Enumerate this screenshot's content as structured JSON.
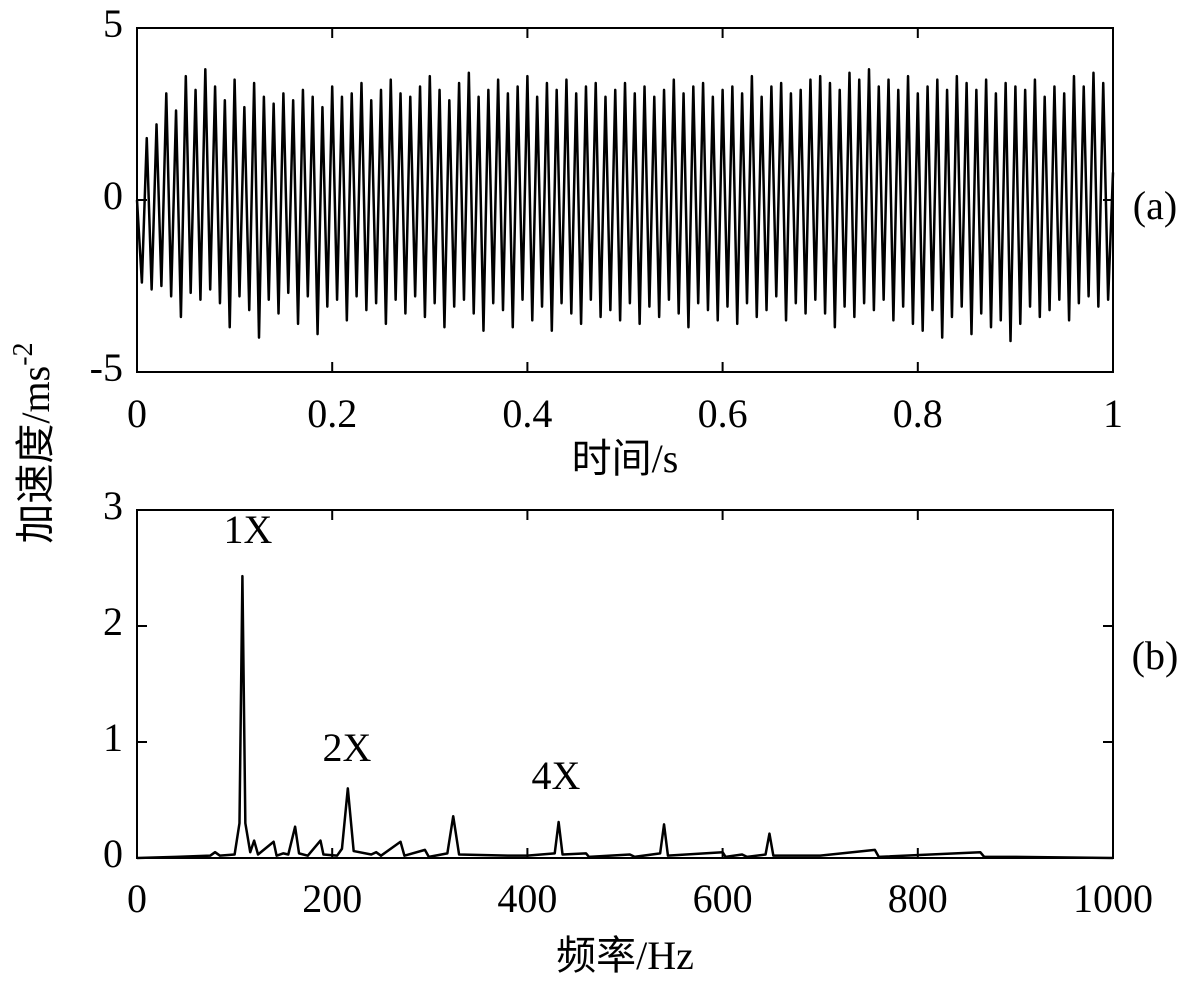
{
  "chart_data": [
    {
      "type": "line",
      "panel_label": "(a)",
      "xlabel": "时间/s",
      "ylabel": "加速度/ms",
      "ylabel_superscript": "-2",
      "xlim": [
        0,
        1
      ],
      "xticks": [
        0,
        0.2,
        0.4,
        0.6,
        0.8,
        1
      ],
      "ylim": [
        -5,
        5
      ],
      "yticks": [
        -5,
        0,
        5
      ],
      "color": "#000000",
      "x": [
        0,
        0.005,
        0.01,
        0.015,
        0.02,
        0.025,
        0.03,
        0.035,
        0.04,
        0.045,
        0.05,
        0.055,
        0.06,
        0.065,
        0.07,
        0.075,
        0.08,
        0.085,
        0.09,
        0.095,
        0.1,
        0.105,
        0.11,
        0.115,
        0.12,
        0.125,
        0.13,
        0.135,
        0.14,
        0.145,
        0.15,
        0.155,
        0.16,
        0.165,
        0.17,
        0.175,
        0.18,
        0.185,
        0.19,
        0.195,
        0.2,
        0.205,
        0.21,
        0.215,
        0.22,
        0.225,
        0.23,
        0.235,
        0.24,
        0.245,
        0.25,
        0.255,
        0.26,
        0.265,
        0.27,
        0.275,
        0.28,
        0.285,
        0.29,
        0.295,
        0.3,
        0.305,
        0.31,
        0.315,
        0.32,
        0.325,
        0.33,
        0.335,
        0.34,
        0.345,
        0.35,
        0.355,
        0.36,
        0.365,
        0.37,
        0.375,
        0.38,
        0.385,
        0.39,
        0.395,
        0.4,
        0.405,
        0.41,
        0.415,
        0.42,
        0.425,
        0.43,
        0.435,
        0.44,
        0.445,
        0.45,
        0.455,
        0.46,
        0.465,
        0.47,
        0.475,
        0.48,
        0.485,
        0.49,
        0.495,
        0.5,
        0.505,
        0.51,
        0.515,
        0.52,
        0.525,
        0.53,
        0.535,
        0.54,
        0.545,
        0.55,
        0.555,
        0.56,
        0.565,
        0.57,
        0.575,
        0.58,
        0.585,
        0.59,
        0.595,
        0.6,
        0.605,
        0.61,
        0.615,
        0.62,
        0.625,
        0.63,
        0.635,
        0.64,
        0.645,
        0.65,
        0.655,
        0.66,
        0.665,
        0.67,
        0.675,
        0.68,
        0.685,
        0.69,
        0.695,
        0.7,
        0.705,
        0.71,
        0.715,
        0.72,
        0.725,
        0.73,
        0.735,
        0.74,
        0.745,
        0.75,
        0.755,
        0.76,
        0.765,
        0.77,
        0.775,
        0.78,
        0.785,
        0.79,
        0.795,
        0.8,
        0.805,
        0.81,
        0.815,
        0.82,
        0.825,
        0.83,
        0.835,
        0.84,
        0.845,
        0.85,
        0.855,
        0.86,
        0.865,
        0.87,
        0.875,
        0.88,
        0.885,
        0.89,
        0.895,
        0.9,
        0.905,
        0.91,
        0.915,
        0.92,
        0.925,
        0.93,
        0.935,
        0.94,
        0.945,
        0.95,
        0.955,
        0.96,
        0.965,
        0.97,
        0.975,
        0.98,
        0.985,
        0.99,
        0.995,
        1
      ],
      "values": [
        0,
        -2.4,
        1.8,
        -2.6,
        2.2,
        -2.5,
        3.1,
        -2.8,
        2.6,
        -3.4,
        3.6,
        -2.7,
        3.2,
        -2.9,
        3.8,
        -2.6,
        3.3,
        -3.0,
        2.9,
        -3.7,
        3.5,
        -2.8,
        2.7,
        -3.2,
        3.4,
        -4.0,
        3.0,
        -2.9,
        2.8,
        -3.3,
        3.1,
        -2.7,
        2.9,
        -3.6,
        3.2,
        -2.8,
        3.0,
        -3.9,
        2.7,
        -3.1,
        3.3,
        -2.9,
        3.0,
        -3.5,
        3.1,
        -2.8,
        3.4,
        -3.2,
        2.9,
        -3.0,
        3.2,
        -3.6,
        3.5,
        -2.9,
        3.1,
        -3.3,
        3.0,
        -2.8,
        3.3,
        -3.4,
        3.6,
        -3.0,
        3.2,
        -3.7,
        2.9,
        -3.1,
        3.4,
        -2.9,
        3.7,
        -3.3,
        3.0,
        -3.8,
        3.2,
        -3.0,
        3.5,
        -3.2,
        3.1,
        -3.7,
        3.3,
        -2.9,
        3.6,
        -3.5,
        3.0,
        -3.1,
        3.4,
        -3.8,
        3.2,
        -3.0,
        3.5,
        -3.3,
        3.1,
        -3.6,
        3.3,
        -2.9,
        3.4,
        -3.4,
        3.0,
        -3.2,
        3.2,
        -3.5,
        3.4,
        -3.0,
        3.1,
        -3.6,
        3.3,
        -3.1,
        3.0,
        -3.4,
        3.2,
        -2.9,
        3.5,
        -3.3,
        3.1,
        -3.7,
        3.3,
        -3.0,
        3.4,
        -3.2,
        3.0,
        -3.5,
        3.2,
        -3.1,
        3.3,
        -3.6,
        3.1,
        -3.0,
        3.6,
        -3.4,
        3.0,
        -3.2,
        3.3,
        -2.8,
        3.4,
        -3.5,
        3.1,
        -3.0,
        3.2,
        -3.3,
        3.5,
        -2.9,
        3.6,
        -3.3,
        3.4,
        -3.7,
        3.2,
        -3.1,
        3.7,
        -3.4,
        3.5,
        -3.0,
        3.8,
        -3.2,
        3.3,
        -2.9,
        3.5,
        -3.5,
        3.2,
        -3.1,
        3.6,
        -3.6,
        3.1,
        -3.8,
        3.3,
        -3.2,
        3.5,
        -4.0,
        3.2,
        -3.4,
        3.6,
        -3.1,
        3.4,
        -3.9,
        3.2,
        -3.3,
        3.5,
        -3.7,
        3.1,
        -3.5,
        3.4,
        -4.1,
        3.3,
        -3.6,
        3.2,
        -3.1,
        3.5,
        -3.4,
        3.0,
        -3.2,
        3.3,
        -2.9,
        3.1,
        -3.5,
        3.6,
        -3.0,
        3.3,
        -2.8,
        3.7,
        -3.1,
        3.4,
        -2.9,
        0.8
      ]
    },
    {
      "type": "line",
      "panel_label": "(b)",
      "xlabel": "频率/Hz",
      "annotations": [
        "1X",
        "2X",
        "4X"
      ],
      "xlim": [
        0,
        1000
      ],
      "xticks": [
        0,
        200,
        400,
        600,
        800,
        1000
      ],
      "ylim": [
        0,
        3
      ],
      "yticks": [
        0,
        1,
        2,
        3
      ],
      "color": "#000000",
      "x": [
        0,
        40,
        75,
        80,
        85,
        100,
        105,
        108,
        111,
        116,
        120,
        124,
        140,
        143,
        150,
        155,
        162,
        166,
        175,
        188,
        191,
        205,
        210,
        216,
        222,
        240,
        245,
        250,
        270,
        274,
        295,
        299,
        318,
        324,
        330,
        380,
        400,
        428,
        432,
        436,
        460,
        463,
        505,
        510,
        536,
        540,
        544,
        600,
        603,
        620,
        625,
        644,
        648,
        652,
        700,
        756,
        760,
        864,
        868,
        900,
        1000
      ],
      "values": [
        0,
        0.01,
        0.02,
        0.05,
        0.02,
        0.03,
        0.3,
        2.43,
        0.3,
        0.05,
        0.15,
        0.03,
        0.14,
        0.02,
        0.04,
        0.03,
        0.27,
        0.04,
        0.02,
        0.15,
        0.03,
        0.02,
        0.08,
        0.6,
        0.06,
        0.03,
        0.05,
        0.02,
        0.14,
        0.02,
        0.07,
        0.01,
        0.04,
        0.36,
        0.03,
        0.02,
        0.02,
        0.04,
        0.31,
        0.03,
        0.04,
        0.01,
        0.03,
        0.01,
        0.04,
        0.29,
        0.02,
        0.05,
        0.01,
        0.03,
        0.01,
        0.03,
        0.21,
        0.02,
        0.02,
        0.07,
        0.01,
        0.05,
        0.01,
        0.01,
        0
      ]
    }
  ]
}
